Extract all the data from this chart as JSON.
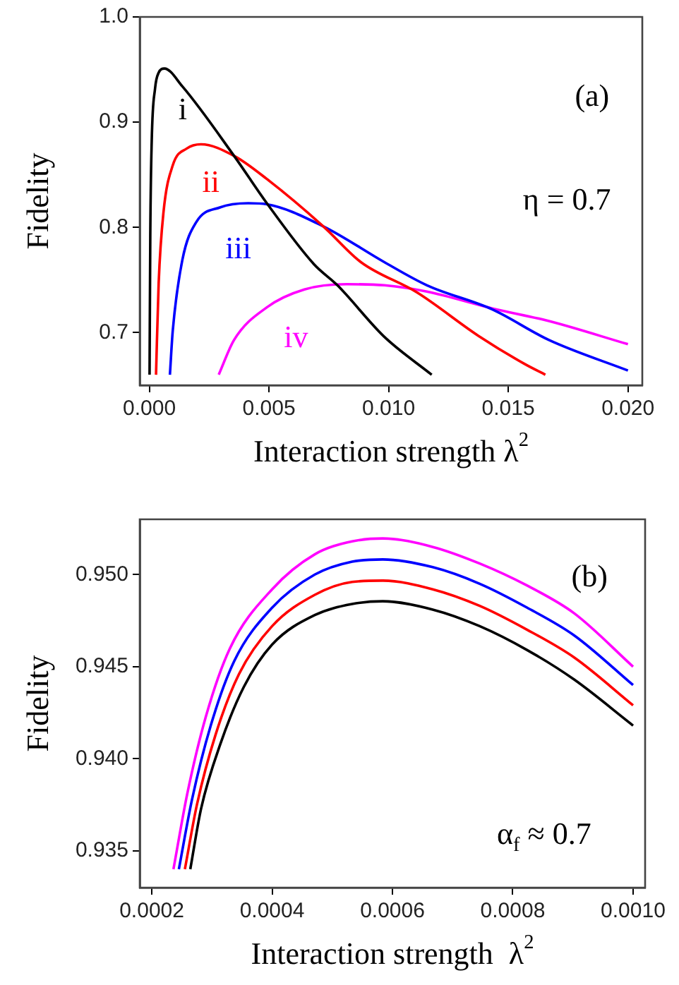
{
  "chart_data": [
    {
      "type": "line",
      "xlabel": "Interaction strength λ$^{2}$",
      "ylabel": "Fidelity",
      "xlim": [
        -0.0004,
        0.0206
      ],
      "ylim": [
        0.65,
        1.0
      ],
      "xticks": [
        {
          "value": 0,
          "label": "0.000"
        },
        {
          "value": 0.005,
          "label": "0.005"
        },
        {
          "value": 0.01,
          "label": "0.010"
        },
        {
          "value": 0.015,
          "label": "0.015"
        },
        {
          "value": 0.02,
          "label": "0.020"
        }
      ],
      "yticks": [
        0.7,
        0.8,
        0.9,
        {
          "value": 1.0,
          "label": "1.0"
        }
      ],
      "grid": false,
      "legend": false,
      "marker": "none",
      "line_style": "solid",
      "series": [
        {
          "color": "#000000",
          "x": [
            1e-05,
            4e-05,
            0.0001,
            0.00024,
            0.00039,
            0.00063,
            0.00138,
            0.00354,
            0.00491,
            0.00688,
            0.00786,
            0.00982,
            0.0118
          ],
          "values": [
            0.66,
            0.792,
            0.882,
            0.932,
            0.947,
            0.951,
            0.934,
            0.868,
            0.823,
            0.765,
            0.745,
            0.696,
            0.66
          ],
          "name": "i"
        },
        {
          "color": "#ff0000",
          "x": [
            0.00028,
            0.00039,
            0.00059,
            0.00098,
            0.00157,
            0.00216,
            0.00354,
            0.00491,
            0.00727,
            0.00884,
            0.0112,
            0.01375,
            0.0157,
            0.01655
          ],
          "values": [
            0.66,
            0.747,
            0.814,
            0.859,
            0.875,
            0.879,
            0.868,
            0.846,
            0.801,
            0.767,
            0.738,
            0.697,
            0.67,
            0.66
          ],
          "name": "ii"
        },
        {
          "color": "#0000ff",
          "x": [
            0.00086,
            0.00098,
            0.00138,
            0.00196,
            0.00295,
            0.00413,
            0.00491,
            0.00727,
            0.00982,
            0.0116,
            0.01434,
            0.0167,
            0.02
          ],
          "values": [
            0.66,
            0.702,
            0.769,
            0.805,
            0.819,
            0.823,
            0.822,
            0.801,
            0.767,
            0.745,
            0.722,
            0.693,
            0.664
          ],
          "name": "iii"
        },
        {
          "color": "#ff00ff",
          "x": [
            0.0029,
            0.00354,
            0.00491,
            0.00648,
            0.00825,
            0.00982,
            0.0116,
            0.01434,
            0.0167,
            0.02
          ],
          "values": [
            0.66,
            0.693,
            0.724,
            0.741,
            0.746,
            0.745,
            0.739,
            0.723,
            0.711,
            0.689
          ],
          "name": "iv"
        }
      ],
      "annotations": [
        "(a)",
        "η = 0.7"
      ]
    },
    {
      "type": "line",
      "xlabel": "Interaction strength  λ$^{2}$",
      "ylabel": "Fidelity",
      "xlim": [
        0.00018,
        0.00102
      ],
      "ylim": [
        0.933,
        0.953
      ],
      "xticks": [
        {
          "value": 0.0002,
          "label": "0.0002"
        },
        {
          "value": 0.0004,
          "label": "0.0004"
        },
        {
          "value": 0.0006,
          "label": "0.0006"
        },
        {
          "value": 0.0008,
          "label": "0.0008"
        },
        {
          "value": 0.001,
          "label": "0.0010"
        }
      ],
      "yticks": [
        0.935,
        {
          "value": 0.94,
          "label": "0.940"
        },
        0.945,
        {
          "value": 0.95,
          "label": "0.950"
        }
      ],
      "grid": false,
      "legend": false,
      "marker": "none",
      "line_style": "solid",
      "series": [
        {
          "color": "#000000",
          "x": [
            0.000264,
            0.000282,
            0.000314,
            0.000353,
            0.0004,
            0.000471,
            0.000533,
            0.000584,
            0.000667,
            0.000745,
            0.000824,
            0.000902,
            0.001
          ],
          "values": [
            0.934,
            0.9373,
            0.9408,
            0.9439,
            0.9462,
            0.9478,
            0.9484,
            0.94855,
            0.9481,
            0.9472,
            0.9459,
            0.9443,
            0.9418
          ]
        },
        {
          "color": "#ff0000",
          "x": [
            0.000255,
            0.000275,
            0.000306,
            0.000345,
            0.0004,
            0.000471,
            0.000533,
            0.000584,
            0.000667,
            0.000745,
            0.000824,
            0.000902,
            0.001
          ],
          "values": [
            0.934,
            0.9375,
            0.9413,
            0.9446,
            0.9472,
            0.9489,
            0.9496,
            0.94967,
            0.9492,
            0.9483,
            0.947,
            0.9455,
            0.9429
          ]
        },
        {
          "color": "#0000ff",
          "x": [
            0.000245,
            0.000267,
            0.000298,
            0.000337,
            0.0004,
            0.000471,
            0.000533,
            0.000584,
            0.000667,
            0.000745,
            0.000824,
            0.000902,
            0.001
          ],
          "values": [
            0.934,
            0.9378,
            0.9418,
            0.9453,
            0.9482,
            0.95,
            0.9507,
            0.95082,
            0.9504,
            0.9495,
            0.9482,
            0.9467,
            0.944
          ]
        },
        {
          "color": "#ff00ff",
          "x": [
            0.000236,
            0.000259,
            0.00029,
            0.00033,
            0.0004,
            0.000471,
            0.000533,
            0.000584,
            0.000667,
            0.000745,
            0.000824,
            0.000902,
            0.001
          ],
          "values": [
            0.934,
            0.9381,
            0.9423,
            0.946,
            0.9492,
            0.9511,
            0.9518,
            0.95196,
            0.9515,
            0.9506,
            0.9494,
            0.9479,
            0.945
          ]
        }
      ],
      "annotations": [
        "(b)",
        "α$_{f}$ ≈ 0.7"
      ]
    }
  ]
}
